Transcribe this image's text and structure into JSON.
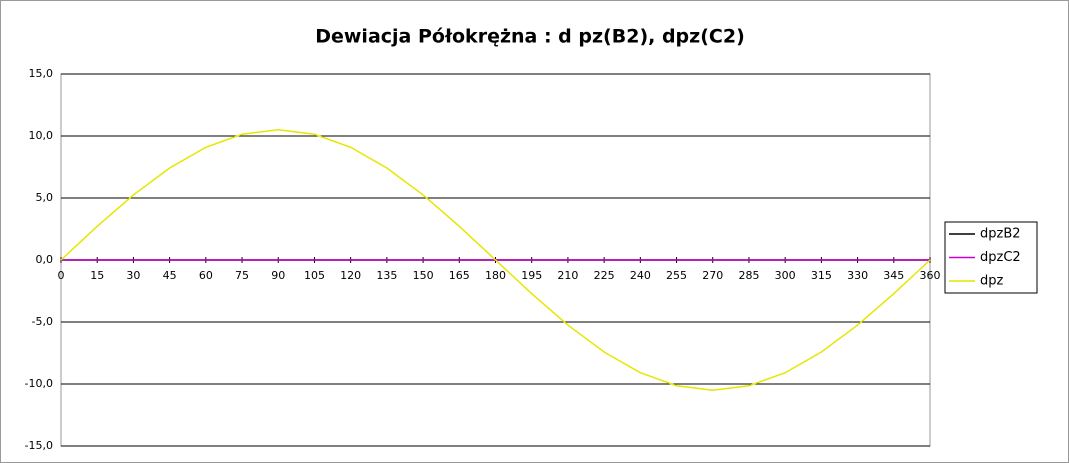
{
  "chart_data": {
    "type": "line",
    "title": "Dewiacja Półokrężna : d pz(B2), dpz(C2)",
    "x": [
      0,
      15,
      30,
      45,
      60,
      75,
      90,
      105,
      120,
      135,
      150,
      165,
      180,
      195,
      210,
      225,
      240,
      255,
      270,
      285,
      300,
      315,
      330,
      345,
      360
    ],
    "series": [
      {
        "name": "dpzB2",
        "color": "#000000",
        "values": [
          0,
          0,
          0,
          0,
          0,
          0,
          0,
          0,
          0,
          0,
          0,
          0,
          0,
          0,
          0,
          0,
          0,
          0,
          0,
          0,
          0,
          0,
          0,
          0,
          0
        ]
      },
      {
        "name": "dpzC2",
        "color": "#cc00cc",
        "values": [
          0,
          0,
          0,
          0,
          0,
          0,
          0,
          0,
          0,
          0,
          0,
          0,
          0,
          0,
          0,
          0,
          0,
          0,
          0,
          0,
          0,
          0,
          0,
          0,
          0
        ]
      },
      {
        "name": "dpz",
        "color": "#e6e600",
        "values": [
          0,
          2.72,
          5.25,
          7.42,
          9.09,
          10.14,
          10.5,
          10.14,
          9.09,
          7.42,
          5.25,
          2.72,
          0,
          -2.72,
          -5.25,
          -7.42,
          -9.09,
          -10.14,
          -10.5,
          -10.14,
          -9.09,
          -7.42,
          -5.25,
          -2.72,
          0
        ]
      }
    ],
    "xlim": [
      0,
      360
    ],
    "xticks": [
      0,
      15,
      30,
      45,
      60,
      75,
      90,
      105,
      120,
      135,
      150,
      165,
      180,
      195,
      210,
      225,
      240,
      255,
      270,
      285,
      300,
      315,
      330,
      345,
      360
    ],
    "ylim": [
      -15,
      15
    ],
    "yticks": [
      {
        "value": -15,
        "label": "-15,0"
      },
      {
        "value": -10,
        "label": "-10,0"
      },
      {
        "value": -5,
        "label": "-5,0"
      },
      {
        "value": 0,
        "label": "0,0"
      },
      {
        "value": 5,
        "label": "5,0"
      },
      {
        "value": 10,
        "label": "10,0"
      },
      {
        "value": 15,
        "label": "15,0"
      }
    ],
    "grid": true,
    "legend": "right"
  }
}
